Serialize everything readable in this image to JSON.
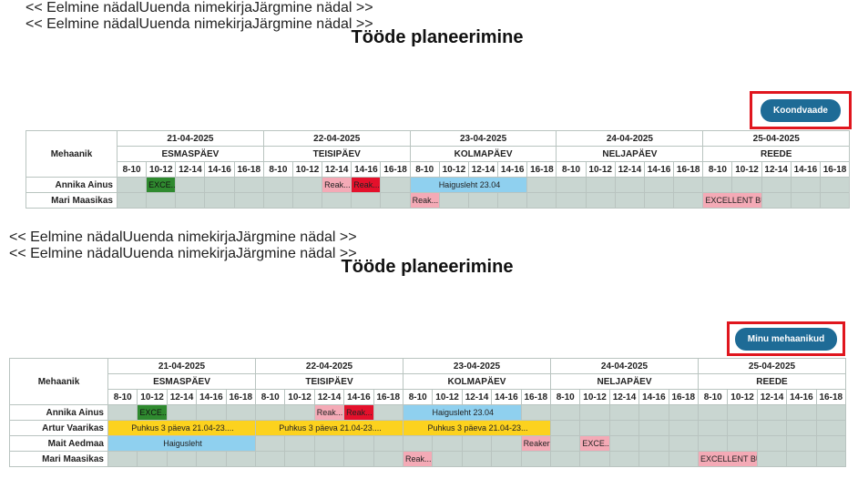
{
  "panels": [
    {
      "title": "Tööde planeerimine",
      "nav": {
        "prev": "<< Eelmine nädal",
        "refresh": "Uuenda nimekirja",
        "next": "Järgmine nädal >>"
      },
      "button": "Koondvaade",
      "table": {
        "mechanic_header": "Mehaanik",
        "days": [
          {
            "date": "21-04-2025",
            "name": "ESMASPÄEV"
          },
          {
            "date": "22-04-2025",
            "name": "TEISIPÄEV"
          },
          {
            "date": "23-04-2025",
            "name": "KOLMAPÄEV"
          },
          {
            "date": "24-04-2025",
            "name": "NELJAPÄEV"
          },
          {
            "date": "25-04-2025",
            "name": "REEDE"
          }
        ],
        "slots": [
          "8-10",
          "10-12",
          "12-14",
          "14-16",
          "16-18"
        ],
        "rows": [
          {
            "name": "Annika Ainus",
            "events": [
              "EXCE...",
              "Reak...",
              "Reak...",
              "Haigusleht 23.04"
            ]
          },
          {
            "name": "Mari Maasikas",
            "events": [
              "Reak...",
              "EXCELLENT BU..."
            ]
          }
        ]
      }
    },
    {
      "title": "Tööde planeerimine",
      "nav": {
        "prev": "<< Eelmine nädal",
        "refresh": "Uuenda nimekirja",
        "next": "Järgmine nädal >>"
      },
      "button": "Minu mehaanikud",
      "table": {
        "mechanic_header": "Mehaanik",
        "days": [
          {
            "date": "21-04-2025",
            "name": "ESMASPÄEV"
          },
          {
            "date": "22-04-2025",
            "name": "TEISIPÄEV"
          },
          {
            "date": "23-04-2025",
            "name": "KOLMAPÄEV"
          },
          {
            "date": "24-04-2025",
            "name": "NELJAPÄEV"
          },
          {
            "date": "25-04-2025",
            "name": "REEDE"
          }
        ],
        "slots": [
          "8-10",
          "10-12",
          "12-14",
          "14-16",
          "16-18"
        ],
        "rows": [
          {
            "name": "Annika Ainus",
            "events": [
              "EXCE...",
              "Reak...",
              "Reak...",
              "Haigusleht 23.04"
            ]
          },
          {
            "name": "Artur Vaarikas",
            "events": [
              "Puhkus 3 päeva 21.04-23....",
              "Puhkus 3 päeva 21.04-23....",
              "Puhkus 3 päeva 21.04-23..."
            ]
          },
          {
            "name": "Mait Aedmaa",
            "events": [
              "Haigusleht",
              "Reaker OÜ",
              "EXCE..."
            ]
          },
          {
            "name": "Mari Maasikas",
            "events": [
              "Reak...",
              "EXCELLENT BU..."
            ]
          }
        ]
      }
    }
  ]
}
